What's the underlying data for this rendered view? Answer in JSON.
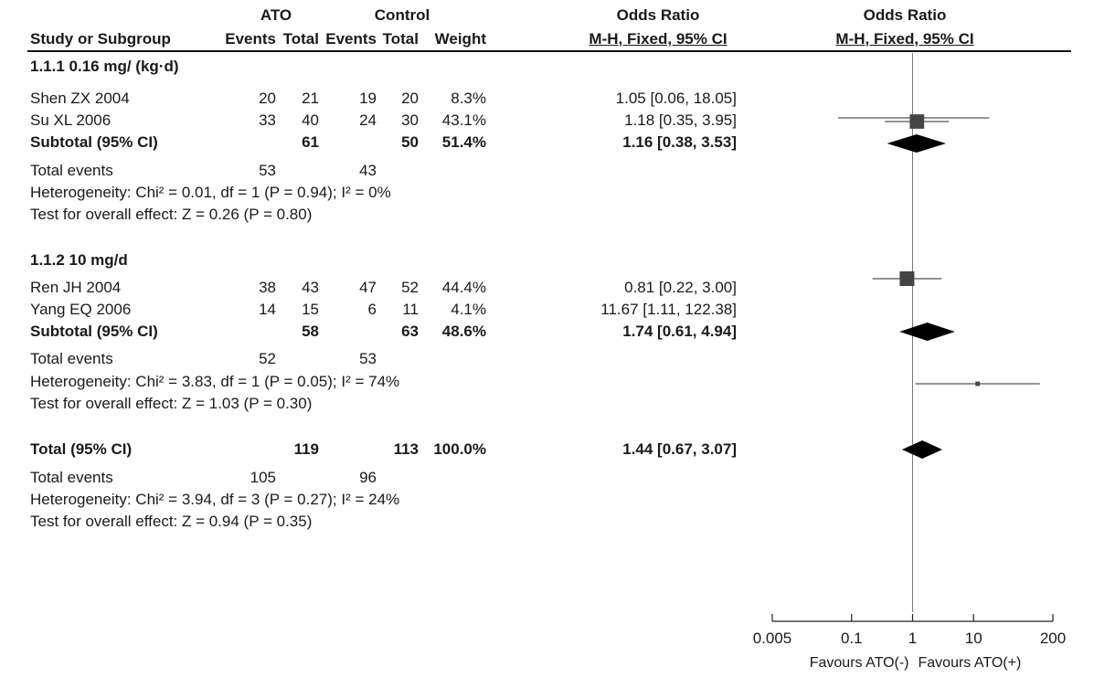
{
  "header": {
    "group_ato": "ATO",
    "group_control": "Control",
    "odds_ratio_table": "Odds Ratio",
    "odds_ratio_plot": "Odds Ratio",
    "col_study": "Study or Subgroup",
    "col_ato_events": "Events",
    "col_ato_total": "Total",
    "col_ctrl_events": "Events",
    "col_ctrl_total": "Total",
    "col_weight": "Weight",
    "col_or_table": "M-H, Fixed, 95% CI",
    "col_or_plot": "M-H, Fixed, 95% CI"
  },
  "subgroups": [
    {
      "title": "1.1.1 0.16 mg/ (kg·d)",
      "studies": [
        {
          "name": "Shen ZX 2004",
          "ato_events": "20",
          "ato_total": "21",
          "ctrl_events": "19",
          "ctrl_total": "20",
          "weight": "8.3%",
          "or_text": "1.05 [0.06, 18.05]"
        },
        {
          "name": "Su XL 2006",
          "ato_events": "33",
          "ato_total": "40",
          "ctrl_events": "24",
          "ctrl_total": "30",
          "weight": "43.1%",
          "or_text": "1.18 [0.35, 3.95]"
        }
      ],
      "subtotal": {
        "label": "Subtotal (95% CI)",
        "ato_total": "61",
        "ctrl_total": "50",
        "weight": "51.4%",
        "or_text": "1.16 [0.38, 3.53]"
      },
      "total_events": {
        "label": "Total events",
        "ato": "53",
        "ctrl": "43"
      },
      "heterogeneity": "Heterogeneity: Chi² = 0.01, df = 1 (P = 0.94); I² = 0%",
      "overall_effect": "Test for overall effect: Z = 0.26 (P = 0.80)"
    },
    {
      "title": "1.1.2 10 mg/d",
      "studies": [
        {
          "name": "Ren JH 2004",
          "ato_events": "38",
          "ato_total": "43",
          "ctrl_events": "47",
          "ctrl_total": "52",
          "weight": "44.4%",
          "or_text": "0.81 [0.22, 3.00]"
        },
        {
          "name": "Yang EQ 2006",
          "ato_events": "14",
          "ato_total": "15",
          "ctrl_events": "6",
          "ctrl_total": "11",
          "weight": "4.1%",
          "or_text": "11.67 [1.11, 122.38]"
        }
      ],
      "subtotal": {
        "label": "Subtotal (95% CI)",
        "ato_total": "58",
        "ctrl_total": "63",
        "weight": "48.6%",
        "or_text": "1.74 [0.61, 4.94]"
      },
      "total_events": {
        "label": "Total events",
        "ato": "52",
        "ctrl": "53"
      },
      "heterogeneity": "Heterogeneity: Chi² = 3.83, df = 1 (P = 0.05); I² = 74%",
      "overall_effect": "Test for overall effect: Z = 1.03 (P = 0.30)"
    }
  ],
  "total": {
    "label": "Total (95% CI)",
    "ato_total": "119",
    "ctrl_total": "113",
    "weight": "100.0%",
    "or_text": "1.44 [0.67, 3.07]",
    "total_events": {
      "label": "Total events",
      "ato": "105",
      "ctrl": "96"
    },
    "heterogeneity": "Heterogeneity: Chi² = 3.94, df = 3 (P = 0.27); I² = 24%",
    "overall_effect": "Test for overall effect: Z = 0.94 (P = 0.35)"
  },
  "chart_data": {
    "type": "forest",
    "scale": "log",
    "xlim": [
      0.005,
      200
    ],
    "ticks": [
      "0.005",
      "0.1",
      "1",
      "10",
      "200"
    ],
    "reference_line": 1,
    "favours_left": "Favours ATO(-)",
    "favours_right": "Favours ATO(+)",
    "studies": [
      {
        "name": "Shen ZX 2004",
        "or": 1.05,
        "lo": 0.06,
        "hi": 18.05,
        "weight": 8.3
      },
      {
        "name": "Su XL 2006",
        "or": 1.18,
        "lo": 0.35,
        "hi": 3.95,
        "weight": 43.1
      },
      {
        "name": "Ren JH 2004",
        "or": 0.81,
        "lo": 0.22,
        "hi": 3.0,
        "weight": 44.4
      },
      {
        "name": "Yang EQ 2006",
        "or": 11.67,
        "lo": 1.11,
        "hi": 122.38,
        "weight": 4.1
      }
    ],
    "diamonds": [
      {
        "name": "Subtotal 1.1.1",
        "or": 1.16,
        "lo": 0.38,
        "hi": 3.53
      },
      {
        "name": "Subtotal 1.1.2",
        "or": 1.74,
        "lo": 0.61,
        "hi": 4.94
      },
      {
        "name": "Total",
        "or": 1.44,
        "lo": 0.67,
        "hi": 3.07
      }
    ],
    "colors": {
      "mark": "#000000",
      "square": "#444444",
      "line": "#555555"
    }
  }
}
